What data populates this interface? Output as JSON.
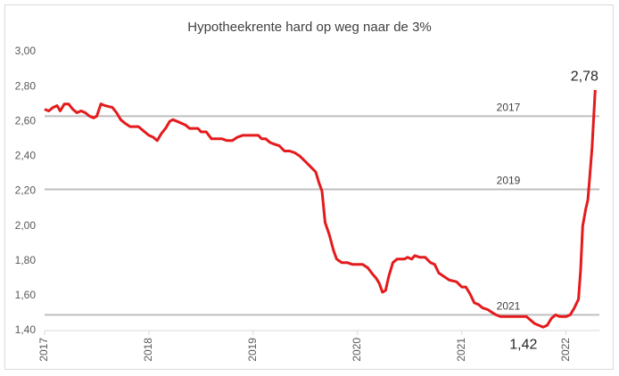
{
  "chart_data": {
    "type": "line",
    "title": "Hypotheekrente hard op weg naar de 3%",
    "x": [
      2017.0,
      2017.04,
      2017.08,
      2017.12,
      2017.15,
      2017.19,
      2017.23,
      2017.27,
      2017.31,
      2017.35,
      2017.39,
      2017.43,
      2017.47,
      2017.5,
      2017.54,
      2017.58,
      2017.65,
      2017.69,
      2017.73,
      2017.77,
      2017.82,
      2017.9,
      2017.96,
      2018.0,
      2018.04,
      2018.08,
      2018.12,
      2018.16,
      2018.2,
      2018.23,
      2018.27,
      2018.31,
      2018.35,
      2018.39,
      2018.47,
      2018.5,
      2018.55,
      2018.6,
      2018.7,
      2018.75,
      2018.8,
      2018.85,
      2018.9,
      2019.0,
      2019.05,
      2019.08,
      2019.12,
      2019.16,
      2019.2,
      2019.25,
      2019.3,
      2019.35,
      2019.4,
      2019.45,
      2019.5,
      2019.55,
      2019.6,
      2019.63,
      2019.66,
      2019.69,
      2019.73,
      2019.77,
      2019.8,
      2019.85,
      2019.9,
      2019.95,
      2020.05,
      2020.1,
      2020.15,
      2020.18,
      2020.21,
      2020.24,
      2020.27,
      2020.3,
      2020.34,
      2020.38,
      2020.45,
      2020.48,
      2020.52,
      2020.55,
      2020.6,
      2020.65,
      2020.7,
      2020.74,
      2020.78,
      2020.83,
      2020.88,
      2020.95,
      2021.0,
      2021.04,
      2021.08,
      2021.12,
      2021.16,
      2021.2,
      2021.25,
      2021.3,
      2021.33,
      2021.37,
      2021.42,
      2021.5,
      2021.58,
      2021.62,
      2021.66,
      2021.7,
      2021.74,
      2021.78,
      2021.82,
      2021.86,
      2021.9,
      2021.94,
      2022.0,
      2022.04,
      2022.08,
      2022.12,
      2022.14,
      2022.16,
      2022.19,
      2022.21,
      2022.23,
      2022.25,
      2022.28
    ],
    "series": [
      {
        "name": "Hypotheekrente",
        "color": "#e41a1c",
        "values": [
          2.67,
          2.66,
          2.68,
          2.69,
          2.66,
          2.7,
          2.7,
          2.67,
          2.65,
          2.66,
          2.65,
          2.63,
          2.62,
          2.63,
          2.7,
          2.69,
          2.68,
          2.65,
          2.61,
          2.59,
          2.57,
          2.57,
          2.54,
          2.52,
          2.51,
          2.49,
          2.53,
          2.56,
          2.6,
          2.61,
          2.6,
          2.59,
          2.58,
          2.56,
          2.56,
          2.54,
          2.54,
          2.5,
          2.5,
          2.49,
          2.49,
          2.51,
          2.52,
          2.52,
          2.52,
          2.5,
          2.5,
          2.48,
          2.47,
          2.46,
          2.43,
          2.43,
          2.42,
          2.4,
          2.37,
          2.34,
          2.31,
          2.25,
          2.2,
          2.02,
          1.95,
          1.86,
          1.81,
          1.79,
          1.79,
          1.78,
          1.78,
          1.76,
          1.72,
          1.7,
          1.67,
          1.62,
          1.63,
          1.71,
          1.79,
          1.81,
          1.81,
          1.82,
          1.81,
          1.83,
          1.82,
          1.82,
          1.79,
          1.78,
          1.73,
          1.71,
          1.69,
          1.68,
          1.65,
          1.65,
          1.61,
          1.56,
          1.55,
          1.53,
          1.52,
          1.5,
          1.49,
          1.48,
          1.48,
          1.48,
          1.48,
          1.48,
          1.46,
          1.44,
          1.43,
          1.42,
          1.43,
          1.47,
          1.49,
          1.48,
          1.48,
          1.49,
          1.53,
          1.58,
          1.75,
          2.0,
          2.1,
          2.15,
          2.3,
          2.45,
          2.78
        ],
        "value_labels": [
          null,
          null,
          null,
          null,
          null,
          null,
          null,
          null,
          null,
          null,
          null,
          null,
          null,
          null,
          null,
          null,
          null,
          null,
          null,
          null,
          null,
          null,
          null,
          null,
          null,
          null,
          null,
          null,
          null,
          null,
          null,
          null,
          null,
          null,
          null,
          null,
          null,
          null,
          null,
          null,
          null,
          null,
          null,
          null,
          null,
          null,
          null,
          null,
          null,
          null,
          null,
          null,
          null,
          null,
          null,
          null,
          null,
          null,
          null,
          null,
          null,
          null,
          null,
          null,
          null,
          null,
          null,
          null,
          null,
          null,
          null,
          null,
          null,
          null,
          null,
          null,
          null,
          null,
          null,
          null,
          null,
          null,
          null,
          null,
          null,
          null,
          null,
          null,
          null,
          null,
          null,
          null,
          null,
          null,
          null,
          null,
          null,
          null,
          null,
          null,
          null,
          null,
          null,
          null,
          null,
          "1,42",
          null,
          null,
          null,
          null,
          null,
          null,
          null,
          null,
          null,
          null,
          null,
          null,
          null,
          null,
          "2,78"
        ]
      }
    ],
    "reference_lines": [
      {
        "label": "2017",
        "value": 2.63,
        "color": "#bfbfbf"
      },
      {
        "label": "2019",
        "value": 2.21,
        "color": "#bfbfbf"
      },
      {
        "label": "2021",
        "value": 1.49,
        "color": "#bfbfbf"
      }
    ],
    "xlim": [
      2017,
      2022.32
    ],
    "xticks": [
      2017,
      2018,
      2019,
      2020,
      2021,
      2022
    ],
    "ylim": [
      1.4,
      3.0
    ],
    "yticks": [
      {
        "value": 1.4,
        "label": "1,40"
      },
      {
        "value": 1.6,
        "label": "1,60"
      },
      {
        "value": 1.8,
        "label": "1,80"
      },
      {
        "value": 2.0,
        "label": "2,00"
      },
      {
        "value": 2.2,
        "label": "2,20"
      },
      {
        "value": 2.4,
        "label": "2,40"
      },
      {
        "value": 2.6,
        "label": "2,60"
      },
      {
        "value": 2.8,
        "label": "2,80"
      },
      {
        "value": 3.0,
        "label": "3,00"
      }
    ],
    "grid": false
  }
}
